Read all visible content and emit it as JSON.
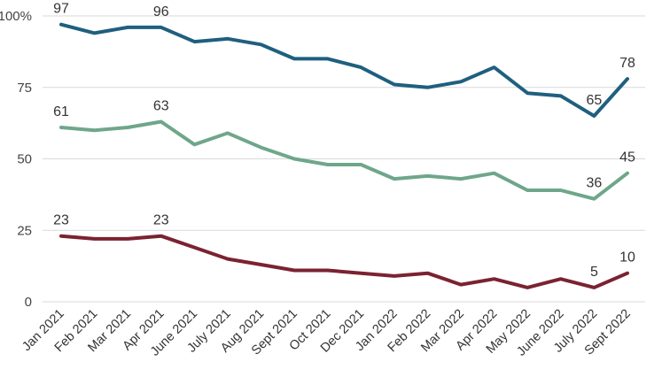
{
  "chart_data": {
    "type": "line",
    "title": "",
    "xlabel": "",
    "ylabel": "",
    "ylim": [
      0,
      100
    ],
    "y_ticks": [
      {
        "value": 100,
        "label": "100%"
      },
      {
        "value": 75,
        "label": "75"
      },
      {
        "value": 50,
        "label": "50"
      },
      {
        "value": 25,
        "label": "25"
      },
      {
        "value": 0,
        "label": "0"
      }
    ],
    "grid": true,
    "legend": "none",
    "categories": [
      "Jan 2021",
      "Feb 2021",
      "Mar 2021",
      "Apr 2021",
      "June 2021",
      "July 2021",
      "Aug 2021",
      "Sept 2021",
      "Oct 2021",
      "Dec 2021",
      "Jan 2022",
      "Feb 2022",
      "Mar 2022",
      "Apr 2022",
      "May 2022",
      "June 2022",
      "July 2022",
      "Sept 2022"
    ],
    "series": [
      {
        "color": "#1f5f7f",
        "values": [
          97,
          94,
          96,
          96,
          91,
          92,
          90,
          85,
          85,
          82,
          76,
          75,
          77,
          82,
          73,
          72,
          65,
          78
        ],
        "labels": {
          "0": "97",
          "3": "96",
          "16": "65",
          "17": "78"
        }
      },
      {
        "color": "#6fa68a",
        "values": [
          61,
          60,
          61,
          63,
          55,
          59,
          54,
          50,
          48,
          48,
          43,
          44,
          43,
          45,
          39,
          39,
          36,
          45
        ],
        "labels": {
          "0": "61",
          "3": "63",
          "16": "36",
          "17": "45"
        }
      },
      {
        "color": "#7b2231",
        "values": [
          23,
          22,
          22,
          23,
          19,
          15,
          13,
          11,
          11,
          10,
          9,
          10,
          6,
          8,
          5,
          8,
          5,
          10
        ],
        "labels": {
          "0": "23",
          "3": "23",
          "16": "5",
          "17": "10"
        }
      }
    ]
  }
}
